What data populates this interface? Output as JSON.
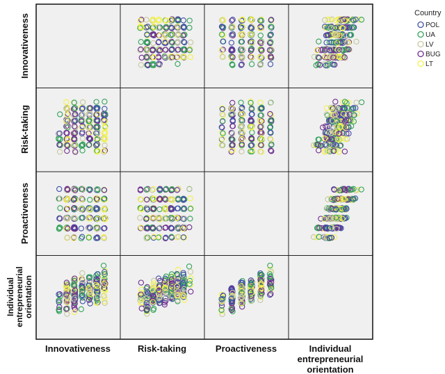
{
  "chart_data": {
    "type": "scatter",
    "subtype": "scatterplot-matrix",
    "variables": [
      "Innovativeness",
      "Risk-taking",
      "Proactiveness",
      "Individual entrepreneurial orientation"
    ],
    "row_labels": [
      "Innovativeness",
      "Risk-taking",
      "Proactiveness",
      "Individual entrepreneurial orientation"
    ],
    "column_labels": [
      "Innovativeness",
      "Risk-taking",
      "Proactiveness",
      "Individual entrepreneurial orientation"
    ],
    "scale": {
      "Innovativeness": 8,
      "Risk-taking": 10,
      "Proactiveness": 6,
      "Individual entrepreneurial orientation": 30
    },
    "axis_ticks_shown": false,
    "grid": false,
    "legend": {
      "title": "Country",
      "placement": "top-right",
      "entries": [
        {
          "name": "POL",
          "color": "#3f51a8"
        },
        {
          "name": "UA",
          "color": "#33a35a"
        },
        {
          "name": "LV",
          "color": "#c7c7a0"
        },
        {
          "name": "BUG",
          "color": "#6e2d8e"
        },
        {
          "name": "LT",
          "color": "#f2f24d"
        }
      ]
    }
  }
}
